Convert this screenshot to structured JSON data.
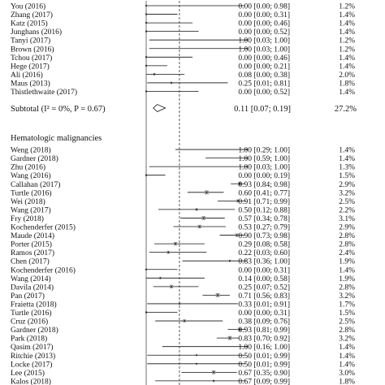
{
  "chart_data": {
    "type": "forest",
    "x_range": [
      0,
      1
    ],
    "null_line": 0.33,
    "groups": [
      {
        "header": "",
        "studies": [
          {
            "label": "You (2016)",
            "est": 0.0,
            "lo": 0.0,
            "hi": 0.98,
            "ci": "0.00 [0.00; 0.98]",
            "weight": "1.2%"
          },
          {
            "label": "Zhang (2017)",
            "est": 0.0,
            "lo": 0.0,
            "hi": 0.31,
            "ci": "0.00 [0.00; 0.31]",
            "weight": "1.4%"
          },
          {
            "label": "Katz (2015)",
            "est": 0.0,
            "lo": 0.0,
            "hi": 0.46,
            "ci": "0.00 [0.00; 0.46]",
            "weight": "1.4%"
          },
          {
            "label": "Junghans (2016)",
            "est": 0.0,
            "lo": 0.0,
            "hi": 0.52,
            "ci": "0.00 [0.00; 0.52]",
            "weight": "1.4%"
          },
          {
            "label": "Tanyi (2017)",
            "est": 1.0,
            "lo": 0.03,
            "hi": 1.0,
            "ci": "1.00 [0.03; 1.00]",
            "weight": "1.2%"
          },
          {
            "label": "Brown (2016)",
            "est": 1.0,
            "lo": 0.03,
            "hi": 1.0,
            "ci": "1.00 [0.03; 1.00]",
            "weight": "1.2%"
          },
          {
            "label": "Tchou (2017)",
            "est": 0.0,
            "lo": 0.0,
            "hi": 0.46,
            "ci": "0.00 [0.00; 0.46]",
            "weight": "1.4%"
          },
          {
            "label": "Hege (2017)",
            "est": 0.0,
            "lo": 0.0,
            "hi": 0.21,
            "ci": "0.00 [0.00; 0.21]",
            "weight": "1.4%"
          },
          {
            "label": "Ali (2016)",
            "est": 0.08,
            "lo": 0.0,
            "hi": 0.38,
            "ci": "0.08 [0.00; 0.38]",
            "weight": "2.0%"
          },
          {
            "label": "Maus (2013)",
            "est": 0.25,
            "lo": 0.01,
            "hi": 0.81,
            "ci": "0.25 [0.01; 0.81]",
            "weight": "1.8%"
          },
          {
            "label": "Thistlethwaite (2017)",
            "est": 0.0,
            "lo": 0.0,
            "hi": 0.52,
            "ci": "0.00 [0.00; 0.52]",
            "weight": "1.4%"
          }
        ],
        "subtotal": {
          "est": 0.11,
          "lo": 0.07,
          "hi": 0.19,
          "ci": "0.11 [0.07; 0.19]",
          "weight": "27.2%"
        }
      },
      {
        "header": "Hematologic malignancies",
        "studies": [
          {
            "label": "Weng (2018)",
            "est": 1.0,
            "lo": 0.29,
            "hi": 1.0,
            "ci": "1.00 [0.29; 1.00]",
            "weight": "1.4%"
          },
          {
            "label": "Gardner (2018)",
            "est": 1.0,
            "lo": 0.59,
            "hi": 1.0,
            "ci": "1.00 [0.59; 1.00]",
            "weight": "1.4%"
          },
          {
            "label": "Zhu (2016)",
            "est": 1.0,
            "lo": 0.03,
            "hi": 1.0,
            "ci": "1.00 [0.03; 1.00]",
            "weight": "1.3%"
          },
          {
            "label": "Wang (2016)",
            "est": 0.0,
            "lo": 0.0,
            "hi": 0.19,
            "ci": "0.00 [0.00; 0.19]",
            "weight": "1.5%"
          },
          {
            "label": "Callahan (2017)",
            "est": 0.93,
            "lo": 0.84,
            "hi": 0.98,
            "ci": "0.93 [0.84; 0.98]",
            "weight": "2.9%"
          },
          {
            "label": "Turtle (2016)",
            "est": 0.6,
            "lo": 0.41,
            "hi": 0.77,
            "ci": "0.60 [0.41; 0.77]",
            "weight": "3.2%"
          },
          {
            "label": "Wei (2018)",
            "est": 0.91,
            "lo": 0.71,
            "hi": 0.99,
            "ci": "0.91 [0.71; 0.99]",
            "weight": "2.5%"
          },
          {
            "label": "Wang (2017)",
            "est": 0.5,
            "lo": 0.12,
            "hi": 0.88,
            "ci": "0.50 [0.12; 0.88]",
            "weight": "2.2%"
          },
          {
            "label": "Fry (2018)",
            "est": 0.57,
            "lo": 0.34,
            "hi": 0.78,
            "ci": "0.57 [0.34; 0.78]",
            "weight": "3.1%"
          },
          {
            "label": "Kochenderfer (2015)",
            "est": 0.53,
            "lo": 0.27,
            "hi": 0.79,
            "ci": "0.53 [0.27; 0.79]",
            "weight": "2.9%"
          },
          {
            "label": "Maude (2014)",
            "est": 0.9,
            "lo": 0.73,
            "hi": 0.98,
            "ci": "0.90 [0.73; 0.98]",
            "weight": "2.8%"
          },
          {
            "label": "Porter (2015)",
            "est": 0.29,
            "lo": 0.08,
            "hi": 0.58,
            "ci": "0.29 [0.08; 0.58]",
            "weight": "2.8%"
          },
          {
            "label": "Ramos (2017)",
            "est": 0.22,
            "lo": 0.03,
            "hi": 0.6,
            "ci": "0.22 [0.03; 0.60]",
            "weight": "2.4%"
          },
          {
            "label": "Chen (2017)",
            "est": 0.83,
            "lo": 0.36,
            "hi": 1.0,
            "ci": "0.83 [0.36; 1.00]",
            "weight": "1.9%"
          },
          {
            "label": "Kochenderfer (2016)",
            "est": 0.0,
            "lo": 0.0,
            "hi": 0.31,
            "ci": "0.00 [0.00; 0.31]",
            "weight": "1.4%"
          },
          {
            "label": "Wang (2014)",
            "est": 0.14,
            "lo": 0.0,
            "hi": 0.58,
            "ci": "0.14 [0.00; 0.58]",
            "weight": "1.9%"
          },
          {
            "label": "Davila (2014)",
            "est": 0.25,
            "lo": 0.07,
            "hi": 0.52,
            "ci": "0.25 [0.07; 0.52]",
            "weight": "2.8%"
          },
          {
            "label": "Pan (2017)",
            "est": 0.71,
            "lo": 0.56,
            "hi": 0.83,
            "ci": "0.71 [0.56; 0.83]",
            "weight": "3.2%"
          },
          {
            "label": "Fraietta (2018)",
            "est": 0.33,
            "lo": 0.01,
            "hi": 0.91,
            "ci": "0.33 [0.01; 0.91]",
            "weight": "1.7%"
          },
          {
            "label": "Turtle (2016)",
            "est": 0.0,
            "lo": 0.0,
            "hi": 0.31,
            "ci": "0.00 [0.00; 0.31]",
            "weight": "1.5%"
          },
          {
            "label": "Cruz (2016)",
            "est": 0.38,
            "lo": 0.09,
            "hi": 0.76,
            "ci": "0.38 [0.09; 0.76]",
            "weight": "2.5%"
          },
          {
            "label": "Gardner (2018)",
            "est": 0.93,
            "lo": 0.81,
            "hi": 0.99,
            "ci": "0.93 [0.81; 0.99]",
            "weight": "2.8%"
          },
          {
            "label": "Park (2018)",
            "est": 0.83,
            "lo": 0.7,
            "hi": 0.92,
            "ci": "0.83 [0.70; 0.92]",
            "weight": "3.2%"
          },
          {
            "label": "Qasim (2017)",
            "est": 1.0,
            "lo": 0.16,
            "hi": 1.0,
            "ci": "1.00 [0.16; 1.00]",
            "weight": "1.4%"
          },
          {
            "label": "Ritchie (2013)",
            "est": 0.5,
            "lo": 0.01,
            "hi": 0.99,
            "ci": "0.50 [0.01; 0.99]",
            "weight": "1.4%"
          },
          {
            "label": "Locke (2017)",
            "est": 0.5,
            "lo": 0.01,
            "hi": 0.99,
            "ci": "0.50 [0.01; 0.99]",
            "weight": "1.4%"
          },
          {
            "label": "Lee (2015)",
            "est": 0.67,
            "lo": 0.35,
            "hi": 0.9,
            "ci": "0.67 [0.35; 0.90]",
            "weight": "3.0%"
          },
          {
            "label": "Kalos (2018)",
            "est": 0.67,
            "lo": 0.09,
            "hi": 0.99,
            "ci": "0.67 [0.09; 0.99]",
            "weight": "1.8%"
          }
        ]
      }
    ],
    "subtotal_label": "Subtotal (I² = 0%, P = 0.67)",
    "colors": {
      "ink": "#111111",
      "box": "#999999",
      "null_line": "#333333"
    }
  }
}
